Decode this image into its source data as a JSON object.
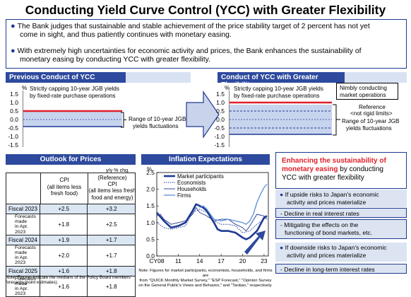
{
  "title": "Conducting Yield Curve Control (YCC) with Greater Flexibility",
  "bullets": [
    {
      "line1": "The Bank judges that sustainable and stable achievement of the price stability target of 2 percent has not yet",
      "line2": "come in sight, and thus patiently continues with monetary easing."
    },
    {
      "line1": "With extremely high uncertainties for economic activity and prices, the Bank enhances the sustainability of",
      "line2": "monetary easing by conducting YCC with greater flexibility."
    }
  ],
  "left_panel": {
    "header": "Previous Conduct of YCC",
    "unit": "%",
    "note_line1": "Strictly capping 10-year JGB yields",
    "note_line2": "by fixed-rate purchase operations",
    "range_line1": "Range of 10-year JGB",
    "range_line2": "yields fluctuations",
    "ticks": [
      "1.5",
      "1.0",
      "0.5",
      "0.0",
      "-0.5",
      "-1.0",
      "-1.5"
    ]
  },
  "right_panel": {
    "header": "Conduct of YCC with Greater Flexibility",
    "unit": "%",
    "note_line1": "Strictly capping 10-year JGB yields",
    "note_line2": "by fixed-rate purchase operations",
    "nimbly_line1": "Nimbly conducting",
    "nimbly_line2": "market operations",
    "ref_line1": "Reference",
    "ref_line2": "<not rigid limits>",
    "range_line1": "Range of 10-year JGB",
    "range_line2": "yields fluctuations",
    "ticks": [
      "1.5",
      "1.0",
      "0.5",
      "0.0",
      "-0.5",
      "-1.0",
      "-1.5"
    ]
  },
  "outlook": {
    "header": "Outlook for Prices",
    "unit": "y/y % chg.",
    "col1_line1": "CPI",
    "col1_line2": "(all items less",
    "col1_line3": "fresh food)",
    "col2_line1": "(Reference)",
    "col2_line2": "CPI",
    "col2_line3": "(all items less fresh",
    "col2_line4": "food and energy)",
    "rows": [
      {
        "label": "Fiscal 2023",
        "v1": "+2.5",
        "v2": "+3.2",
        "sub1": "Forecasts made",
        "sub2": "in Apr. 2023",
        "s1": "+1.8",
        "s2": "+2.5"
      },
      {
        "label": "Fiscal 2024",
        "v1": "+1.9",
        "v2": "+1.7",
        "sub1": "Forecasts made",
        "sub2": "in Apr. 2023",
        "s1": "+2.0",
        "s2": "+1.7"
      },
      {
        "label": "Fiscal 2025",
        "v1": "+1.6",
        "v2": "+1.8",
        "sub1": "Forecasts made",
        "sub2": "in Apr. 2023",
        "s1": "+1.6",
        "s2": "+1.8"
      }
    ],
    "note_line1": "Note: Figures indicate the medians of the Policy Board members'",
    "note_line2": "forecasts (point estimates)."
  },
  "chart_data": {
    "type": "line",
    "title": "Inflation Expectations",
    "ylabel": "%",
    "ylim": [
      0.0,
      2.5
    ],
    "y_ticks": [
      "2.5",
      "2.0",
      "1.5",
      "1.0",
      "0.5",
      "0.0"
    ],
    "x_ticks": [
      "CY08",
      "11",
      "14",
      "17",
      "20",
      "23"
    ],
    "x_tick_years": [
      2008,
      2011,
      2014,
      2017,
      2020,
      2023
    ],
    "xlim": [
      2008,
      2023.6
    ],
    "series": [
      {
        "name": "Market participants",
        "style": "thick",
        "color": "#1f3a93",
        "x": [
          2008,
          2009,
          2010,
          2011,
          2012,
          2013,
          2013.5,
          2014,
          2014.5,
          2015,
          2016,
          2016.5,
          2017,
          2018,
          2019,
          2020,
          2020.5,
          2021,
          2022,
          2022.5,
          2023,
          2023.4
        ],
        "y": [
          1.3,
          1.05,
          0.85,
          0.9,
          1.0,
          1.35,
          1.55,
          1.5,
          1.45,
          1.35,
          1.0,
          0.8,
          0.75,
          0.75,
          0.7,
          0.55,
          0.5,
          0.55,
          0.75,
          0.95,
          1.15,
          1.2
        ]
      },
      {
        "name": "Economists",
        "style": "dotted",
        "color": "#1f3a93",
        "x": [
          2008,
          2009,
          2010,
          2011,
          2012,
          2013,
          2014,
          2015,
          2016,
          2017,
          2018,
          2019,
          2020,
          2021,
          2022,
          2023,
          2023.4
        ],
        "y": [
          1.0,
          0.85,
          0.8,
          0.85,
          0.9,
          1.3,
          1.4,
          1.3,
          1.05,
          0.95,
          0.95,
          0.9,
          0.7,
          0.75,
          0.95,
          1.1,
          1.2
        ]
      },
      {
        "name": "Households",
        "style": "thin",
        "color": "#1f3a93",
        "x": [
          2008,
          2008.5,
          2009,
          2010,
          2011,
          2012,
          2013,
          2013.5,
          2014,
          2015,
          2016,
          2017,
          2018,
          2019,
          2020,
          2020.5,
          2021,
          2022,
          2023,
          2023.4
        ],
        "y": [
          1.2,
          1.25,
          1.1,
          0.95,
          1.0,
          1.05,
          1.25,
          1.45,
          1.3,
          1.2,
          1.05,
          1.1,
          1.1,
          0.95,
          0.85,
          0.75,
          0.9,
          1.25,
          1.2,
          1.1
        ]
      },
      {
        "name": "Firms",
        "style": "light",
        "color": "#5b8fd8",
        "x": [
          2014,
          2014.5,
          2015,
          2016,
          2017,
          2018,
          2019,
          2020,
          2020.5,
          2021,
          2021.5,
          2022,
          2022.5,
          2023,
          2023.4
        ],
        "y": [
          1.45,
          1.5,
          1.4,
          1.1,
          1.05,
          1.1,
          1.05,
          1.0,
          0.95,
          1.05,
          1.25,
          1.6,
          1.85,
          2.05,
          2.15
        ]
      }
    ],
    "note_line1": "Note: Figures for market participants, economists, households, and firms are",
    "note_line2": "from \"QUICK Monthly Market Survey,\" \"ESP Forecast,\" \"Opinion Survey",
    "note_line3": "on the General Public's Views and Behavior,\" and \"Tankan,\" respectively."
  },
  "sustain": {
    "head_red_line1": "Enhancing the sustainability of",
    "head_red_line2": "monetary easing",
    "head_rest_line2": " by conducting",
    "head_line3": "YCC with greater flexibility",
    "up_line1": "If upside risks to Japan's economic",
    "up_line2": "activity and prices materialize",
    "item1": "- Decline in real interest rates",
    "item2_line1": "- Mitigating the effects on the",
    "item2_line2": "functioning of bond markets, etc.",
    "down_line1": "If downside risks to Japan's economic",
    "down_line2": "activity and prices materialize",
    "item3": "- Decline in long-term interest rates"
  },
  "colors": {
    "navy": "#1f3a93",
    "red": "#e0202a",
    "panel_bg": "#dce4f2",
    "fill": "#c7d4ee"
  }
}
